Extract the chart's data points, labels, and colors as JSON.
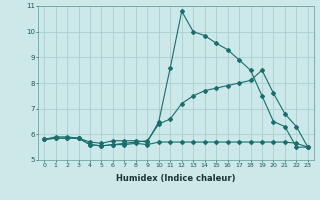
{
  "xlabel": "Humidex (Indice chaleur)",
  "bg_color": "#cce8e8",
  "line_color": "#1a6e6e",
  "grid_color": "#aacfcf",
  "xlim": [
    -0.5,
    23.5
  ],
  "ylim": [
    5,
    11
  ],
  "yticks": [
    5,
    6,
    7,
    8,
    9,
    10,
    11
  ],
  "xticks": [
    0,
    1,
    2,
    3,
    4,
    5,
    6,
    7,
    8,
    9,
    10,
    11,
    12,
    13,
    14,
    15,
    16,
    17,
    18,
    19,
    20,
    21,
    22,
    23
  ],
  "line1_x": [
    0,
    1,
    2,
    3,
    4,
    5,
    6,
    7,
    8,
    9,
    10,
    11,
    12,
    13,
    14,
    15,
    16,
    17,
    18,
    19,
    20,
    21,
    22,
    23
  ],
  "line1_y": [
    5.8,
    5.9,
    5.9,
    5.85,
    5.7,
    5.65,
    5.75,
    5.75,
    5.75,
    5.7,
    6.5,
    8.6,
    10.8,
    10.0,
    9.85,
    9.55,
    9.3,
    8.9,
    8.5,
    7.5,
    6.5,
    6.3,
    5.5,
    5.5
  ],
  "line2_x": [
    0,
    1,
    2,
    3,
    4,
    5,
    6,
    7,
    8,
    9,
    10,
    11,
    12,
    13,
    14,
    15,
    16,
    17,
    18,
    19,
    20,
    21,
    22,
    23
  ],
  "line2_y": [
    5.8,
    5.85,
    5.85,
    5.85,
    5.6,
    5.55,
    5.6,
    5.6,
    5.65,
    5.6,
    5.7,
    5.7,
    5.7,
    5.7,
    5.7,
    5.7,
    5.7,
    5.7,
    5.7,
    5.7,
    5.7,
    5.7,
    5.65,
    5.5
  ],
  "line3_x": [
    0,
    1,
    2,
    3,
    4,
    5,
    6,
    7,
    8,
    9,
    10,
    11,
    12,
    13,
    14,
    15,
    16,
    17,
    18,
    19,
    20,
    21,
    22,
    23
  ],
  "line3_y": [
    5.8,
    5.85,
    5.85,
    5.85,
    5.6,
    5.55,
    5.6,
    5.65,
    5.7,
    5.75,
    6.4,
    6.6,
    7.2,
    7.5,
    7.7,
    7.8,
    7.9,
    8.0,
    8.1,
    8.5,
    7.6,
    6.8,
    6.3,
    5.5
  ],
  "xlabel_fontsize": 6.0,
  "tick_fontsize": 4.5,
  "marker_size": 2.0
}
